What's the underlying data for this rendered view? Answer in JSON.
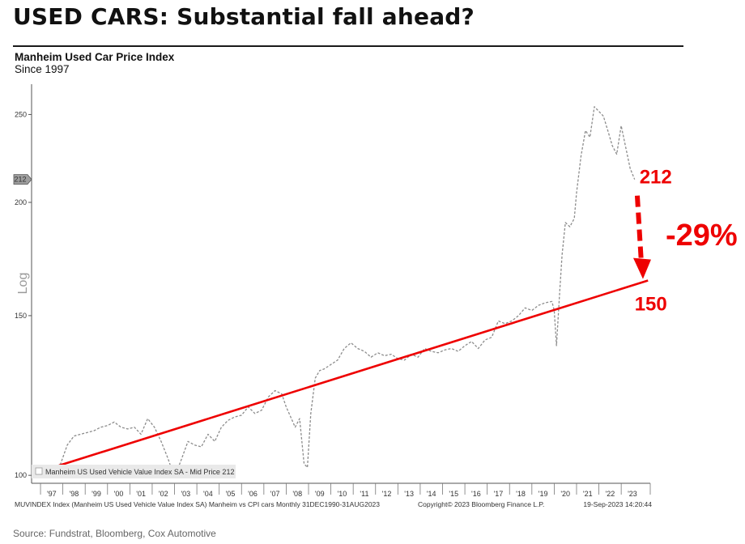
{
  "headline": "USED CARS: Substantial fall ahead?",
  "source": "Source: Fundstrat, Bloomberg, Cox Automotive",
  "chart_data": {
    "type": "line",
    "title": "Manheim Used Car Price Index",
    "subtitle": "Since 1997",
    "ylabel": "Log",
    "yscale": "log",
    "ylim": [
      98,
      270
    ],
    "yticks": [
      100,
      150,
      200,
      250
    ],
    "ytick_labels": [
      "100",
      "150",
      "200",
      "250"
    ],
    "last_value_tag": "212",
    "xlim": [
      1996.6,
      2024.3
    ],
    "xticks": [
      1997,
      1998,
      1999,
      2000,
      2001,
      2002,
      2003,
      2004,
      2005,
      2006,
      2007,
      2008,
      2009,
      2010,
      2011,
      2012,
      2013,
      2014,
      2015,
      2016,
      2017,
      2018,
      2019,
      2020,
      2021,
      2022,
      2023
    ],
    "xtick_labels": [
      "'97",
      "'98",
      "'99",
      "'00",
      "'01",
      "'02",
      "'03",
      "'04",
      "'05",
      "'06",
      "'07",
      "'08",
      "'09",
      "'10",
      "'11",
      "'12",
      "'13",
      "'14",
      "'15",
      "'16",
      "'17",
      "'18",
      "'19",
      "'20",
      "'21",
      "'22",
      "'23"
    ],
    "series": [
      {
        "name": "Manheim US Used Vehicle Value Index SA - Mid Price 212",
        "style": "dashed",
        "color": "#8c8c8c",
        "x": [
          1997.0,
          1997.3,
          1997.6,
          1997.9,
          1998.2,
          1998.5,
          1998.8,
          1999.1,
          1999.4,
          1999.7,
          2000.0,
          2000.3,
          2000.6,
          2000.9,
          2001.2,
          2001.5,
          2001.8,
          2002.1,
          2002.4,
          2002.7,
          2003.0,
          2003.3,
          2003.6,
          2003.9,
          2004.2,
          2004.5,
          2004.8,
          2005.1,
          2005.4,
          2005.7,
          2006.0,
          2006.3,
          2006.6,
          2006.9,
          2007.2,
          2007.5,
          2007.8,
          2008.0,
          2008.2,
          2008.4,
          2008.6,
          2008.8,
          2008.95,
          2009.1,
          2009.3,
          2009.5,
          2009.7,
          2010.0,
          2010.3,
          2010.6,
          2010.9,
          2011.2,
          2011.5,
          2011.8,
          2012.1,
          2012.4,
          2012.7,
          2013.0,
          2013.3,
          2013.6,
          2013.9,
          2014.2,
          2014.5,
          2014.8,
          2015.1,
          2015.4,
          2015.7,
          2016.0,
          2016.3,
          2016.6,
          2016.9,
          2017.2,
          2017.5,
          2017.8,
          2018.1,
          2018.4,
          2018.7,
          2019.0,
          2019.3,
          2019.6,
          2019.9,
          2020.0,
          2020.1,
          2020.25,
          2020.35,
          2020.5,
          2020.7,
          2020.9,
          2021.0,
          2021.2,
          2021.4,
          2021.6,
          2021.8,
          2022.0,
          2022.2,
          2022.4,
          2022.6,
          2022.8,
          2023.0,
          2023.2,
          2023.4,
          2023.6
        ],
        "y": [
          100.5,
          99.8,
          101.5,
          103,
          108,
          110.5,
          111,
          111.5,
          112,
          113,
          113.5,
          114.5,
          113,
          112.5,
          113,
          111,
          115.5,
          113,
          109,
          104.5,
          99.5,
          104,
          109,
          108,
          107.5,
          111,
          109,
          113,
          115,
          116,
          116.5,
          119,
          117,
          118,
          122,
          124,
          123,
          119,
          116,
          113,
          115.5,
          103,
          102,
          117,
          128,
          130.5,
          131,
          132.5,
          134,
          138,
          140,
          138,
          137,
          135,
          136.5,
          135.5,
          136,
          134.5,
          134,
          136,
          135,
          138,
          137,
          136.5,
          137.5,
          138,
          137,
          139,
          140.5,
          138,
          141,
          142,
          148,
          147,
          148,
          150,
          153,
          152,
          154,
          155,
          155.5,
          152,
          139,
          160,
          175,
          190,
          188,
          192,
          205,
          225,
          240,
          236,
          255,
          252,
          249,
          240,
          231,
          226,
          243,
          230,
          218,
          212
        ]
      },
      {
        "name": "Trend",
        "style": "solid",
        "color": "#ee0000",
        "x": [
          1997.0,
          2024.2
        ],
        "y": [
          101,
          164
        ]
      }
    ],
    "annotations": {
      "current_value": "212",
      "target_value": "150",
      "change": "-29%"
    },
    "legend": {
      "placement": "bottom-left",
      "label": "Manheim US Used Vehicle Value Index SA - Mid Price 212"
    }
  },
  "footer": {
    "left": "MUVINDEX Index (Manheim US Used Vehicle Value Index SA) Manheim vs CPI cars  Monthly 31DEC1990-31AUG2023",
    "center": "Copyright© 2023 Bloomberg Finance L.P.",
    "right": "19-Sep-2023 14:20:44"
  }
}
